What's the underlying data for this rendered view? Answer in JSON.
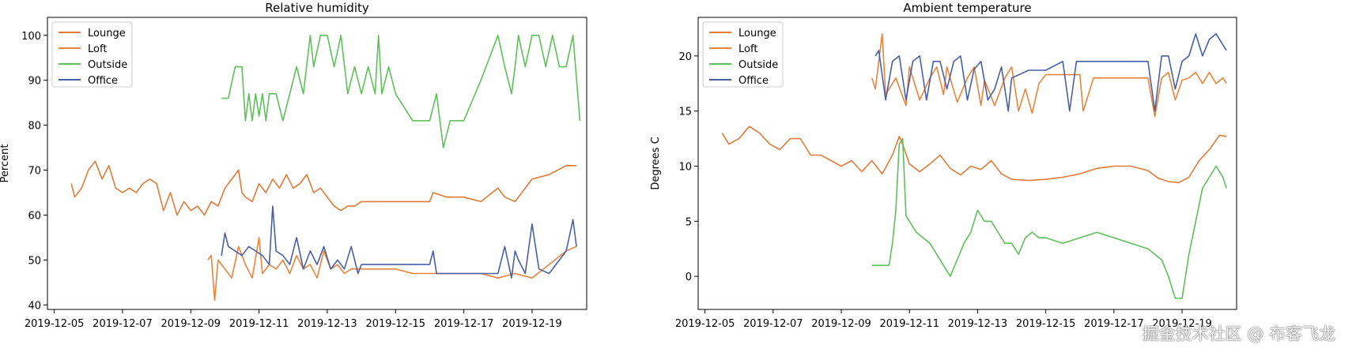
{
  "chart_data": [
    {
      "type": "line",
      "title": "Relative humidity",
      "xlabel": "",
      "ylabel": "Percent",
      "x_ticks": [
        "2019-12-05",
        "2019-12-07",
        "2019-12-09",
        "2019-12-11",
        "2019-12-13",
        "2019-12-15",
        "2019-12-17",
        "2019-12-19"
      ],
      "xlim": [
        -0.2,
        15.6
      ],
      "ylim": [
        39,
        104
      ],
      "y_ticks": [
        40,
        50,
        60,
        70,
        80,
        90,
        100
      ],
      "grid": false,
      "legend": "top-left",
      "series": [
        {
          "name": "Lounge",
          "color": "#e07b39",
          "x": [
            0.5,
            0.6,
            0.8,
            1.0,
            1.2,
            1.4,
            1.6,
            1.8,
            2.0,
            2.2,
            2.4,
            2.6,
            2.8,
            3.0,
            3.2,
            3.4,
            3.6,
            3.8,
            4.0,
            4.2,
            4.4,
            4.6,
            4.8,
            5.0,
            5.2,
            5.4,
            5.5,
            5.6,
            5.8,
            6.0,
            6.2,
            6.4,
            6.6,
            6.8,
            7.0,
            7.2,
            7.4,
            7.6,
            7.8,
            8.0,
            8.2,
            8.4,
            8.6,
            8.8,
            9.0,
            9.5,
            10.0,
            10.5,
            11.0,
            11.1,
            11.5,
            12.0,
            12.5,
            13.0,
            13.2,
            13.5,
            14.0,
            14.5,
            15.0,
            15.3
          ],
          "y": [
            67,
            64,
            66,
            70,
            72,
            68,
            71,
            66,
            65,
            66,
            65,
            67,
            68,
            67,
            61,
            65,
            60,
            63,
            61,
            62,
            60,
            63,
            62,
            66,
            68,
            70,
            65,
            64,
            63,
            67,
            65,
            68,
            66,
            69,
            66,
            67,
            69,
            65,
            66,
            64,
            62,
            61,
            62,
            62,
            63,
            63,
            63,
            63,
            63,
            65,
            64,
            64,
            63,
            66,
            64,
            63,
            68,
            69,
            71,
            71
          ]
        },
        {
          "name": "Loft",
          "color": "#e8853d",
          "x": [
            4.5,
            4.6,
            4.7,
            4.8,
            4.9,
            5.0,
            5.2,
            5.4,
            5.6,
            5.8,
            6.0,
            6.1,
            6.3,
            6.5,
            6.7,
            6.9,
            7.1,
            7.3,
            7.5,
            7.7,
            7.9,
            8.1,
            8.3,
            8.5,
            8.7,
            9.0,
            9.5,
            10.0,
            10.5,
            10.8,
            11.0,
            11.5,
            12.0,
            12.5,
            13.0,
            13.5,
            14.0,
            14.5,
            15.0,
            15.3
          ],
          "y": [
            50,
            51,
            41,
            50,
            49,
            48,
            46,
            53,
            49,
            46,
            55,
            47,
            49,
            48,
            50,
            47,
            51,
            48,
            49,
            46,
            52,
            48,
            49,
            47,
            48,
            48,
            48,
            48,
            47,
            47,
            47,
            47,
            47,
            47,
            46,
            47,
            46,
            49,
            52,
            53
          ]
        },
        {
          "name": "Outside",
          "color": "#5fbf5a",
          "x": [
            4.9,
            5.1,
            5.3,
            5.5,
            5.6,
            5.7,
            5.8,
            5.9,
            6.0,
            6.1,
            6.2,
            6.3,
            6.4,
            6.5,
            6.7,
            6.9,
            7.1,
            7.3,
            7.5,
            7.6,
            7.8,
            8.0,
            8.2,
            8.4,
            8.6,
            8.8,
            9.0,
            9.2,
            9.4,
            9.5,
            9.6,
            9.8,
            10.0,
            10.5,
            11.0,
            11.2,
            11.4,
            11.6,
            11.7,
            11.8,
            12.0,
            12.5,
            13.0,
            13.2,
            13.4,
            13.5,
            13.6,
            13.8,
            14.0,
            14.2,
            14.4,
            14.6,
            14.8,
            15.0,
            15.2,
            15.4
          ],
          "y": [
            86,
            86,
            93,
            93,
            81,
            87,
            81,
            87,
            82,
            87,
            81,
            87,
            87,
            87,
            81,
            87,
            93,
            87,
            100,
            93,
            100,
            100,
            93,
            100,
            87,
            93,
            87,
            93,
            87,
            100,
            87,
            93,
            87,
            81,
            81,
            87,
            75,
            81,
            81,
            81,
            81,
            90,
            100,
            93,
            87,
            93,
            100,
            93,
            100,
            100,
            93,
            100,
            93,
            93,
            100,
            81
          ]
        },
        {
          "name": "Office",
          "color": "#4a5fa6",
          "x": [
            4.9,
            5.0,
            5.1,
            5.3,
            5.5,
            5.7,
            5.9,
            6.1,
            6.3,
            6.4,
            6.5,
            6.7,
            6.9,
            7.1,
            7.3,
            7.5,
            7.7,
            7.9,
            8.1,
            8.3,
            8.5,
            8.7,
            8.9,
            9.0,
            9.5,
            10.0,
            10.5,
            11.0,
            11.1,
            11.2,
            11.3,
            11.5,
            12.0,
            12.5,
            13.0,
            13.2,
            13.4,
            13.5,
            13.6,
            13.8,
            14.0,
            14.2,
            14.5,
            14.8,
            15.0,
            15.2,
            15.3
          ],
          "y": [
            51,
            56,
            53,
            52,
            51,
            53,
            52,
            51,
            49,
            62,
            52,
            51,
            49,
            55,
            48,
            52,
            49,
            53,
            48,
            50,
            48,
            53,
            47,
            49,
            49,
            49,
            49,
            49,
            52,
            47,
            47,
            47,
            47,
            47,
            47,
            53,
            46,
            52,
            50,
            47,
            58,
            48,
            47,
            50,
            52,
            59,
            53
          ]
        }
      ]
    },
    {
      "type": "line",
      "title": "Ambient temperature",
      "xlabel": "",
      "ylabel": "Degrees C",
      "x_ticks": [
        "2019-12-05",
        "2019-12-07",
        "2019-12-09",
        "2019-12-11",
        "2019-12-13",
        "2019-12-15",
        "2019-12-17",
        "2019-12-19"
      ],
      "xlim": [
        -0.2,
        15.6
      ],
      "ylim": [
        -3.0,
        23.5
      ],
      "y_ticks": [
        0,
        5,
        10,
        15,
        20
      ],
      "grid": false,
      "legend": "top-left",
      "series": [
        {
          "name": "Lounge",
          "color": "#e07b39",
          "x": [
            0.5,
            0.7,
            1.0,
            1.3,
            1.6,
            1.9,
            2.2,
            2.5,
            2.8,
            3.1,
            3.4,
            3.7,
            4.0,
            4.3,
            4.6,
            4.9,
            5.2,
            5.5,
            5.7,
            5.8,
            6.0,
            6.3,
            6.6,
            6.9,
            7.2,
            7.5,
            7.8,
            8.1,
            8.4,
            8.7,
            9.0,
            9.5,
            10.0,
            10.5,
            11.0,
            11.5,
            12.0,
            12.5,
            13.0,
            13.3,
            13.6,
            13.9,
            14.2,
            14.5,
            14.8,
            15.1,
            15.3
          ],
          "y": [
            13,
            12,
            12.5,
            13.6,
            13,
            12,
            11.5,
            12.5,
            12.5,
            11,
            11,
            10.5,
            10,
            10.5,
            9.5,
            10.5,
            9.3,
            11,
            12.7,
            12,
            10.2,
            9.5,
            10.2,
            11,
            9.8,
            9.2,
            10,
            9.7,
            10.5,
            9.3,
            8.8,
            8.7,
            8.8,
            9,
            9.3,
            9.8,
            10,
            10,
            9.6,
            8.9,
            8.6,
            8.5,
            9,
            10.5,
            11.5,
            12.8,
            12.7
          ]
        },
        {
          "name": "Loft",
          "color": "#e8853d",
          "x": [
            4.9,
            5.0,
            5.2,
            5.3,
            5.6,
            5.9,
            6.0,
            6.3,
            6.6,
            6.8,
            7.0,
            7.1,
            7.4,
            7.7,
            7.9,
            8.1,
            8.2,
            8.5,
            8.8,
            9.0,
            9.2,
            9.4,
            9.6,
            9.8,
            10.0,
            10.5,
            11.0,
            11.1,
            11.4,
            11.6,
            11.8,
            12.0,
            12.5,
            13.0,
            13.2,
            13.4,
            13.6,
            13.8,
            14.0,
            14.2,
            14.4,
            14.6,
            14.8,
            15.0,
            15.2,
            15.3
          ],
          "y": [
            18,
            17,
            22,
            16.5,
            18,
            15.5,
            19,
            16,
            18,
            19,
            16.5,
            19,
            15.8,
            18,
            19,
            15.5,
            17.8,
            15.5,
            18,
            19,
            15,
            17,
            14.8,
            17.5,
            18.3,
            18.3,
            18.3,
            15,
            18,
            18,
            18,
            18,
            18,
            18,
            14.5,
            18,
            18.5,
            16,
            17.8,
            18,
            18.5,
            17.5,
            18.5,
            17.5,
            18,
            17.5
          ]
        },
        {
          "name": "Outside",
          "color": "#5fbf5a",
          "x": [
            4.9,
            5.2,
            5.4,
            5.5,
            5.6,
            5.7,
            5.8,
            5.9,
            6.0,
            6.2,
            6.4,
            6.6,
            6.8,
            7.0,
            7.2,
            7.4,
            7.6,
            7.8,
            8.0,
            8.2,
            8.4,
            8.6,
            8.8,
            9.0,
            9.2,
            9.4,
            9.6,
            9.8,
            10.0,
            10.5,
            11.0,
            11.5,
            12.0,
            12.5,
            13.0,
            13.2,
            13.4,
            13.6,
            13.8,
            14.0,
            14.2,
            14.4,
            14.6,
            14.8,
            15.0,
            15.2,
            15.3
          ],
          "y": [
            1,
            1,
            1,
            3,
            6,
            12,
            12.5,
            5.5,
            5,
            4,
            3.5,
            3,
            2,
            1,
            0,
            1.5,
            3,
            4,
            6,
            5,
            5,
            4,
            3,
            3,
            2,
            3.5,
            4,
            3.5,
            3.5,
            3,
            3.5,
            4,
            3.5,
            3,
            2.5,
            2,
            1.5,
            0,
            -2,
            -2,
            2,
            5,
            8,
            9,
            10,
            9,
            8
          ]
        },
        {
          "name": "Office",
          "color": "#4a5fa6",
          "x": [
            5.0,
            5.1,
            5.3,
            5.5,
            5.7,
            5.9,
            6.1,
            6.3,
            6.5,
            6.7,
            6.9,
            7.1,
            7.3,
            7.5,
            7.7,
            7.9,
            8.1,
            8.3,
            8.5,
            8.7,
            8.9,
            9.0,
            9.5,
            10.0,
            10.5,
            10.7,
            10.9,
            11.1,
            11.3,
            11.5,
            12.0,
            12.5,
            13.0,
            13.2,
            13.4,
            13.6,
            13.8,
            14.0,
            14.2,
            14.4,
            14.6,
            14.8,
            15.0,
            15.2,
            15.3
          ],
          "y": [
            20,
            20.5,
            16,
            19.5,
            20,
            16,
            19.5,
            20,
            16,
            19.5,
            19.5,
            17,
            19.5,
            20,
            16,
            18.8,
            19.5,
            16,
            17,
            19,
            15,
            18,
            18.7,
            18.7,
            19.5,
            15,
            19.5,
            19.5,
            19.5,
            19.5,
            19.5,
            19.5,
            19.5,
            15,
            20,
            20,
            17,
            19.5,
            20,
            22,
            20,
            21.5,
            22,
            21,
            20.5
          ]
        }
      ]
    }
  ],
  "watermark": "掘金技术社区 @ 布客飞龙"
}
